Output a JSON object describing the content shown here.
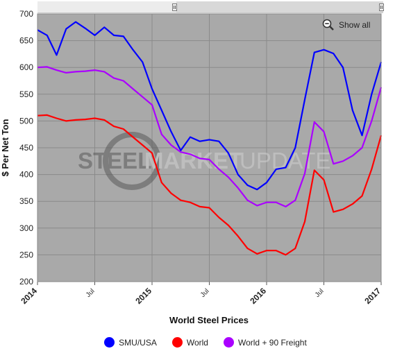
{
  "chart_data": {
    "type": "line",
    "title": "",
    "xlabel": "World Steel Prices",
    "ylabel": "$ Per Net Ton",
    "ylim": [
      200,
      700
    ],
    "xlim": [
      "2014-01",
      "2017-01"
    ],
    "yticks": [
      200,
      250,
      300,
      350,
      400,
      450,
      500,
      550,
      600,
      650,
      700
    ],
    "xticks": [
      {
        "label": "2014",
        "x": "2014-01",
        "major": true
      },
      {
        "label": "Jul",
        "x": "2014-07",
        "major": false
      },
      {
        "label": "2015",
        "x": "2015-01",
        "major": true
      },
      {
        "label": "Jul",
        "x": "2015-07",
        "major": false
      },
      {
        "label": "2016",
        "x": "2016-01",
        "major": true
      },
      {
        "label": "Jul",
        "x": "2016-07",
        "major": false
      },
      {
        "label": "2017",
        "x": "2017-01",
        "major": true
      }
    ],
    "grid": true,
    "legend": "bottom",
    "series": [
      {
        "name": "SMU/USA",
        "color": "#0000ff",
        "points": [
          [
            "2014-01",
            670
          ],
          [
            "2014-02",
            660
          ],
          [
            "2014-03",
            623
          ],
          [
            "2014-04",
            672
          ],
          [
            "2014-05",
            685
          ],
          [
            "2014-06",
            673
          ],
          [
            "2014-07",
            660
          ],
          [
            "2014-08",
            675
          ],
          [
            "2014-09",
            660
          ],
          [
            "2014-10",
            658
          ],
          [
            "2014-11",
            633
          ],
          [
            "2014-12",
            610
          ],
          [
            "2015-01",
            560
          ],
          [
            "2015-02",
            520
          ],
          [
            "2015-03",
            480
          ],
          [
            "2015-04",
            445
          ],
          [
            "2015-05",
            470
          ],
          [
            "2015-06",
            462
          ],
          [
            "2015-07",
            465
          ],
          [
            "2015-08",
            462
          ],
          [
            "2015-09",
            440
          ],
          [
            "2015-10",
            400
          ],
          [
            "2015-11",
            380
          ],
          [
            "2015-12",
            372
          ],
          [
            "2016-01",
            385
          ],
          [
            "2016-02",
            410
          ],
          [
            "2016-03",
            413
          ],
          [
            "2016-04",
            450
          ],
          [
            "2016-05",
            540
          ],
          [
            "2016-06",
            628
          ],
          [
            "2016-07",
            633
          ],
          [
            "2016-08",
            626
          ],
          [
            "2016-09",
            600
          ],
          [
            "2016-10",
            520
          ],
          [
            "2016-11",
            473
          ],
          [
            "2016-12",
            550
          ],
          [
            "2017-01",
            610
          ]
        ]
      },
      {
        "name": "World",
        "color": "#ff0000",
        "points": [
          [
            "2014-01",
            510
          ],
          [
            "2014-02",
            511
          ],
          [
            "2014-03",
            505
          ],
          [
            "2014-04",
            500
          ],
          [
            "2014-05",
            502
          ],
          [
            "2014-06",
            503
          ],
          [
            "2014-07",
            505
          ],
          [
            "2014-08",
            502
          ],
          [
            "2014-09",
            490
          ],
          [
            "2014-10",
            485
          ],
          [
            "2014-11",
            470
          ],
          [
            "2014-12",
            455
          ],
          [
            "2015-01",
            440
          ],
          [
            "2015-02",
            385
          ],
          [
            "2015-03",
            365
          ],
          [
            "2015-04",
            352
          ],
          [
            "2015-05",
            348
          ],
          [
            "2015-06",
            340
          ],
          [
            "2015-07",
            338
          ],
          [
            "2015-08",
            320
          ],
          [
            "2015-09",
            305
          ],
          [
            "2015-10",
            285
          ],
          [
            "2015-11",
            262
          ],
          [
            "2015-12",
            252
          ],
          [
            "2016-01",
            258
          ],
          [
            "2016-02",
            258
          ],
          [
            "2016-03",
            250
          ],
          [
            "2016-04",
            262
          ],
          [
            "2016-05",
            312
          ],
          [
            "2016-06",
            408
          ],
          [
            "2016-07",
            390
          ],
          [
            "2016-08",
            330
          ],
          [
            "2016-09",
            335
          ],
          [
            "2016-10",
            345
          ],
          [
            "2016-11",
            360
          ],
          [
            "2016-12",
            410
          ],
          [
            "2017-01",
            473
          ]
        ]
      },
      {
        "name": "World + 90 Freight",
        "color": "#aa00ff",
        "points": [
          [
            "2014-01",
            600
          ],
          [
            "2014-02",
            601
          ],
          [
            "2014-03",
            595
          ],
          [
            "2014-04",
            590
          ],
          [
            "2014-05",
            592
          ],
          [
            "2014-06",
            593
          ],
          [
            "2014-07",
            595
          ],
          [
            "2014-08",
            592
          ],
          [
            "2014-09",
            580
          ],
          [
            "2014-10",
            575
          ],
          [
            "2014-11",
            560
          ],
          [
            "2014-12",
            545
          ],
          [
            "2015-01",
            530
          ],
          [
            "2015-02",
            475
          ],
          [
            "2015-03",
            455
          ],
          [
            "2015-04",
            442
          ],
          [
            "2015-05",
            438
          ],
          [
            "2015-06",
            430
          ],
          [
            "2015-07",
            428
          ],
          [
            "2015-08",
            410
          ],
          [
            "2015-09",
            395
          ],
          [
            "2015-10",
            375
          ],
          [
            "2015-11",
            352
          ],
          [
            "2015-12",
            342
          ],
          [
            "2016-01",
            348
          ],
          [
            "2016-02",
            348
          ],
          [
            "2016-03",
            340
          ],
          [
            "2016-04",
            352
          ],
          [
            "2016-05",
            402
          ],
          [
            "2016-06",
            498
          ],
          [
            "2016-07",
            480
          ],
          [
            "2016-08",
            420
          ],
          [
            "2016-09",
            425
          ],
          [
            "2016-10",
            435
          ],
          [
            "2016-11",
            450
          ],
          [
            "2016-12",
            500
          ],
          [
            "2017-01",
            563
          ]
        ]
      }
    ]
  },
  "ui": {
    "show_all_label": "Show all",
    "watermark_left": "STEEL",
    "watermark_mid": "MARKET",
    "watermark_right": "UPDATE"
  }
}
